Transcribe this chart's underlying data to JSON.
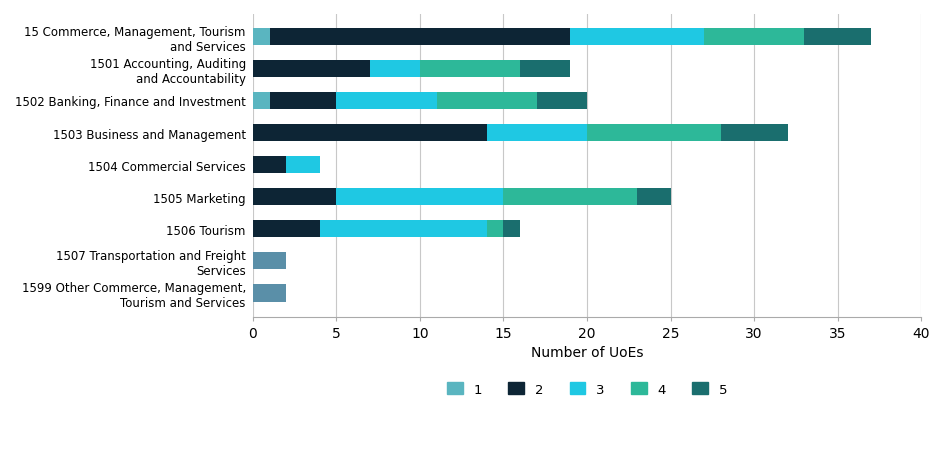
{
  "categories": [
    "15 Commerce, Management, Tourism\nand Services",
    "1501 Accounting, Auditing\nand Accountability",
    "1502 Banking, Finance and Investment",
    "1503 Business and Management",
    "1504 Commercial Services",
    "1505 Marketing",
    "1506 Tourism",
    "1507 Transportation and Freight\nServices",
    "1599 Other Commerce, Management,\nTourism and Services"
  ],
  "ratings": [
    "1",
    "2",
    "3",
    "4",
    "5"
  ],
  "colors": [
    "#5ab5c0",
    "#0d2535",
    "#1fc8e3",
    "#2db899",
    "#1a6e6e"
  ],
  "data": [
    [
      1,
      18,
      8,
      6,
      4
    ],
    [
      0,
      7,
      3,
      6,
      3
    ],
    [
      1,
      4,
      6,
      6,
      3
    ],
    [
      0,
      14,
      6,
      8,
      4
    ],
    [
      0,
      2,
      2,
      0,
      0
    ],
    [
      0,
      5,
      10,
      8,
      2
    ],
    [
      0,
      4,
      10,
      1,
      1
    ],
    [
      2,
      0,
      0,
      0,
      0
    ],
    [
      2,
      0,
      0,
      0,
      0
    ]
  ],
  "xlim": [
    0,
    40
  ],
  "xticks": [
    0,
    5,
    10,
    15,
    20,
    25,
    30,
    35,
    40
  ],
  "xlabel": "Number of UoEs",
  "background_color": "#ffffff",
  "grid_color": "#c8c8c8",
  "bar_height": 0.55,
  "figsize": [
    9.45,
    4.6
  ],
  "dpi": 100,
  "legend_color_1507_1599": "#5a8fa8"
}
